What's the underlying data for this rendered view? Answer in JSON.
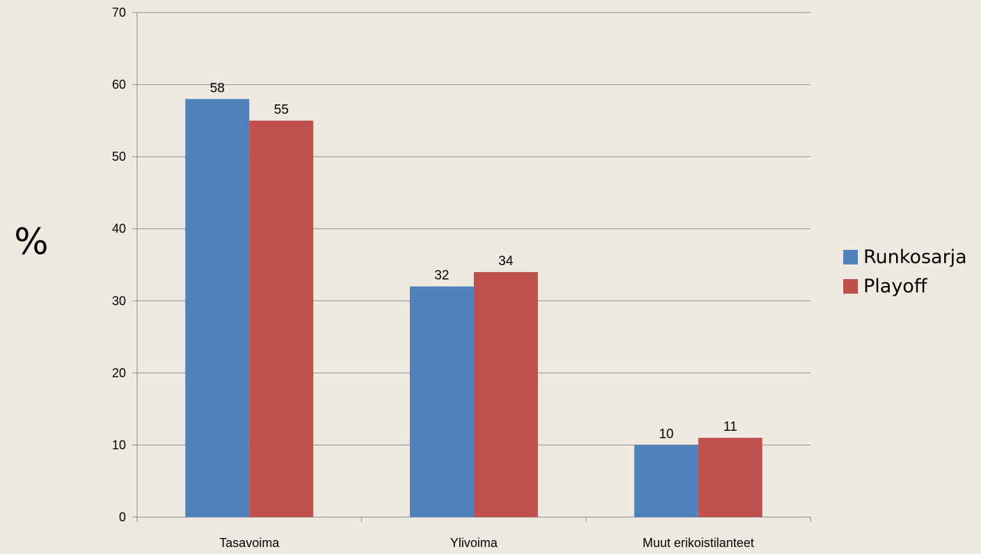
{
  "chart_data": {
    "type": "bar",
    "title": "",
    "xlabel": "",
    "ylabel": "%",
    "ylim": [
      0,
      70
    ],
    "yticks": [
      0,
      10,
      20,
      30,
      40,
      50,
      60,
      70
    ],
    "grid": true,
    "legend_position": "right",
    "categories": [
      "Tasavoima",
      "Ylivoima",
      "Muut erikoistilanteet"
    ],
    "series": [
      {
        "name": "Runkosarja",
        "color": "#4F81BD",
        "values": [
          58,
          32,
          10
        ]
      },
      {
        "name": "Playoff",
        "color": "#C0504D",
        "values": [
          55,
          34,
          11
        ]
      }
    ]
  }
}
